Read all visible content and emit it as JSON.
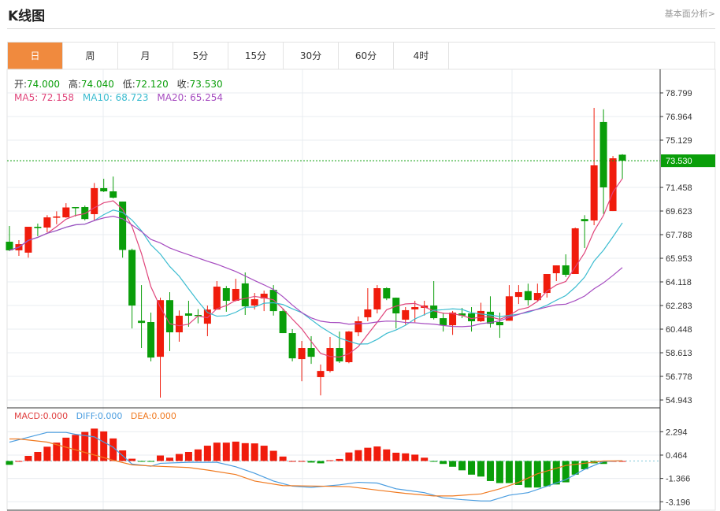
{
  "header": {
    "title": "K线图",
    "link": "基本面分析>"
  },
  "tabs": [
    {
      "label": "日",
      "active": true
    },
    {
      "label": "周"
    },
    {
      "label": "月"
    },
    {
      "label": "5分"
    },
    {
      "label": "15分"
    },
    {
      "label": "30分"
    },
    {
      "label": "60分"
    },
    {
      "label": "4时"
    }
  ],
  "ohlc_info": {
    "open_label": "开:",
    "open": "74.000",
    "high_label": "高:",
    "high": "74.040",
    "low_label": "低:",
    "low": "72.120",
    "close_label": "收:",
    "close": "73.530"
  },
  "ma_info": {
    "ma5": "MA5: 72.158",
    "ma10": "MA10: 68.723",
    "ma20": "MA20: 65.254"
  },
  "macd_info": {
    "macd": "MACD:0.000",
    "diff": "DIFF:0.000",
    "dea": "DEA:0.000"
  },
  "colors": {
    "up": "#f01c0c",
    "down": "#0a9e0a",
    "ma5": "#e0457b",
    "ma10": "#3bbcd0",
    "ma20": "#a64cc0",
    "diff": "#4a9de0",
    "dea": "#f07a20",
    "active_tab": "#f08a3e"
  },
  "chart_data": [
    {
      "type": "candlestick",
      "current_price": 73.53,
      "current_price_label": "73.530",
      "y_ticks": [
        "78.799",
        "76.964",
        "75.129",
        "71.458",
        "69.623",
        "67.788",
        "65.953",
        "64.118",
        "62.283",
        "60.448",
        "58.613",
        "56.778",
        "54.943"
      ],
      "ylim": [
        54.943,
        78.799
      ],
      "ohlc": [
        [
          67.24,
          68.46,
          66.51,
          66.57
        ],
        [
          66.57,
          67.36,
          66.14,
          67.05
        ],
        [
          66.39,
          68.4,
          66.0,
          68.4
        ],
        [
          68.4,
          68.65,
          67.67,
          68.3
        ],
        [
          68.34,
          69.3,
          67.97,
          69.13
        ],
        [
          69.1,
          69.6,
          68.6,
          69.2
        ],
        [
          69.13,
          70.23,
          69.1,
          69.9
        ],
        [
          69.93,
          69.93,
          69.2,
          69.87
        ],
        [
          69.93,
          70.05,
          68.9,
          69.0
        ],
        [
          69.38,
          71.8,
          68.9,
          71.4
        ],
        [
          71.4,
          72.13,
          71.1,
          71.15
        ],
        [
          71.15,
          72.3,
          70.6,
          70.66
        ],
        [
          70.36,
          70.36,
          66.0,
          66.6
        ],
        [
          66.6,
          66.7,
          60.5,
          62.28
        ],
        [
          61.1,
          63.87,
          58.98,
          60.93
        ],
        [
          61.0,
          61.73,
          57.94,
          58.24
        ],
        [
          58.3,
          62.89,
          55.13,
          62.7
        ],
        [
          62.7,
          63.32,
          58.74,
          60.2
        ],
        [
          60.2,
          61.9,
          59.47,
          61.49
        ],
        [
          61.67,
          62.65,
          60.63,
          61.49
        ],
        [
          61.55,
          62.0,
          60.9,
          61.5
        ],
        [
          60.87,
          62.28,
          59.9,
          61.97
        ],
        [
          61.97,
          64.18,
          61.97,
          63.75
        ],
        [
          63.63,
          63.8,
          61.8,
          62.65
        ],
        [
          62.65,
          64.36,
          62.6,
          63.57
        ],
        [
          64.0,
          64.85,
          61.55,
          62.22
        ],
        [
          62.28,
          63.26,
          61.97,
          62.77
        ],
        [
          62.83,
          63.44,
          61.85,
          63.2
        ],
        [
          63.5,
          63.87,
          61.5,
          61.85
        ],
        [
          61.85,
          62.0,
          60.14,
          60.14
        ],
        [
          60.14,
          60.45,
          57.94,
          58.18
        ],
        [
          58.12,
          59.53,
          56.4,
          58.98
        ],
        [
          58.98,
          59.9,
          57.75,
          58.3
        ],
        [
          56.72,
          57.7,
          55.3,
          57.2
        ],
        [
          57.2,
          59.84,
          57.08,
          58.98
        ],
        [
          58.98,
          60.26,
          57.82,
          57.94
        ],
        [
          57.88,
          60.3,
          57.8,
          60.26
        ],
        [
          60.2,
          61.43,
          59.9,
          61.06
        ],
        [
          61.37,
          63.63,
          61.06,
          61.98
        ],
        [
          61.98,
          63.87,
          61.67,
          63.63
        ],
        [
          63.63,
          63.7,
          62.7,
          62.83
        ],
        [
          62.89,
          62.9,
          60.5,
          61.67
        ],
        [
          61.18,
          62.16,
          60.8,
          61.92
        ],
        [
          61.98,
          62.65,
          60.98,
          62.16
        ],
        [
          62.1,
          62.65,
          61.5,
          62.28
        ],
        [
          62.28,
          64.18,
          61.2,
          61.3
        ],
        [
          61.3,
          61.73,
          60.26,
          60.75
        ],
        [
          60.75,
          61.86,
          60.0,
          61.73
        ],
        [
          61.67,
          62.1,
          61.3,
          61.5
        ],
        [
          61.67,
          62.16,
          60.26,
          61.06
        ],
        [
          61.06,
          62.5,
          61.0,
          61.86
        ],
        [
          61.8,
          63.0,
          60.57,
          60.87
        ],
        [
          61.0,
          61.73,
          59.77,
          60.75
        ],
        [
          61.1,
          63.87,
          61.1,
          63.0
        ],
        [
          62.95,
          63.87,
          62.4,
          63.32
        ],
        [
          63.4,
          63.98,
          62.28,
          62.7
        ],
        [
          62.7,
          63.98,
          62.6,
          63.26
        ],
        [
          63.26,
          64.73,
          62.9,
          64.73
        ],
        [
          64.79,
          65.4,
          64.18,
          65.4
        ],
        [
          65.4,
          66.26,
          64.5,
          64.67
        ],
        [
          64.73,
          68.34,
          64.73,
          68.28
        ],
        [
          69.0,
          69.3,
          66.75,
          68.83
        ],
        [
          68.89,
          77.64,
          68.52,
          73.17
        ],
        [
          76.54,
          77.52,
          69.4,
          71.46
        ],
        [
          69.62,
          73.9,
          69.62,
          73.72
        ],
        [
          74.0,
          74.04,
          72.12,
          73.53
        ]
      ]
    },
    {
      "type": "macd",
      "y_ticks": [
        "2.294",
        "0.464",
        "-1.366",
        "-3.196"
      ],
      "ylim": [
        -3.7,
        3.0
      ],
      "histogram": [
        -0.3,
        0.0,
        0.4,
        0.71,
        1.12,
        1.44,
        1.83,
        2.05,
        2.28,
        2.54,
        2.32,
        1.77,
        0.83,
        0.18,
        -0.05,
        -0.05,
        0.43,
        0.26,
        0.55,
        0.71,
        0.91,
        1.2,
        1.44,
        1.44,
        1.52,
        1.4,
        1.38,
        1.2,
        0.8,
        0.35,
        0.0,
        0.0,
        -0.12,
        -0.18,
        0.06,
        0.16,
        0.67,
        0.85,
        1.04,
        1.14,
        0.91,
        0.65,
        0.6,
        0.5,
        0.26,
        -0.05,
        -0.23,
        -0.45,
        -0.73,
        -1.07,
        -1.22,
        -1.57,
        -1.73,
        -1.73,
        -1.88,
        -2.08,
        -2.08,
        -1.98,
        -1.84,
        -1.67,
        -1.07,
        -0.65,
        -0.18,
        -0.23,
        0.0,
        0.0
      ],
      "diff": [
        [
          0,
          1.48
        ],
        [
          4,
          2.24
        ],
        [
          6,
          2.24
        ],
        [
          7,
          2.09
        ],
        [
          9,
          1.89
        ],
        [
          11,
          1.08
        ],
        [
          13,
          -0.24
        ],
        [
          15,
          -0.41
        ],
        [
          16,
          -0.18
        ],
        [
          19,
          -0.1
        ],
        [
          22,
          -0.1
        ],
        [
          24,
          -0.45
        ],
        [
          26,
          -0.96
        ],
        [
          28,
          -1.57
        ],
        [
          30,
          -1.97
        ],
        [
          32,
          -2.07
        ],
        [
          35,
          -1.87
        ],
        [
          37,
          -1.67
        ],
        [
          39,
          -1.73
        ],
        [
          41,
          -2.18
        ],
        [
          44,
          -2.48
        ],
        [
          46,
          -2.89
        ],
        [
          48,
          -3.03
        ],
        [
          50,
          -3.13
        ],
        [
          51,
          -3.13
        ],
        [
          53,
          -2.68
        ],
        [
          55,
          -2.48
        ],
        [
          57,
          -1.98
        ],
        [
          59,
          -1.46
        ],
        [
          61,
          -0.65
        ],
        [
          63,
          -0.04
        ],
        [
          65,
          0.02
        ]
      ],
      "dea": [
        [
          0,
          1.73
        ],
        [
          1,
          1.73
        ],
        [
          4,
          1.48
        ],
        [
          6,
          1.08
        ],
        [
          9,
          0.47
        ],
        [
          11,
          0.06
        ],
        [
          13,
          -0.3
        ],
        [
          15,
          -0.39
        ],
        [
          19,
          -0.51
        ],
        [
          21,
          -0.71
        ],
        [
          24,
          -1.06
        ],
        [
          26,
          -1.57
        ],
        [
          29,
          -1.93
        ],
        [
          33,
          -1.97
        ],
        [
          36,
          -2.01
        ],
        [
          39,
          -2.28
        ],
        [
          42,
          -2.54
        ],
        [
          45,
          -2.74
        ],
        [
          47,
          -2.74
        ],
        [
          50,
          -2.58
        ],
        [
          52,
          -2.18
        ],
        [
          54,
          -1.67
        ],
        [
          56,
          -1.0
        ],
        [
          59,
          -0.35
        ],
        [
          63,
          0.0
        ],
        [
          65,
          0.02
        ]
      ]
    }
  ]
}
